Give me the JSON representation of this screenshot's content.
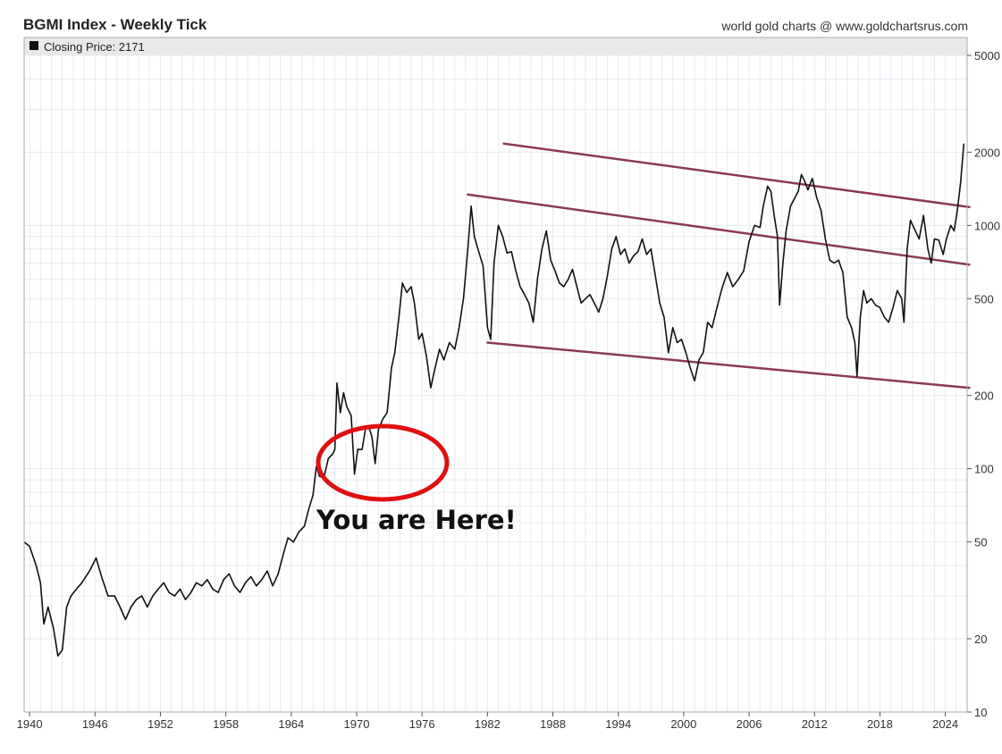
{
  "header": {
    "title": "BGMI Index - Weekly Tick",
    "source": "world gold charts @ www.goldchartsrus.com"
  },
  "legend": {
    "label": "Closing Price: 2171",
    "swatch_color": "#111111"
  },
  "annotation": {
    "text": "You are Here!",
    "circle_color": "#e01010"
  },
  "colors": {
    "price_line": "#111111",
    "trend_lines": "#8c3a52",
    "grid": "#e6ebf2",
    "legend_bar": "#e9e9e9"
  },
  "chart_data": {
    "type": "line",
    "title": "BGMI Index - Weekly Tick",
    "y_scale": "log",
    "ylim": [
      10,
      5000
    ],
    "xlim": [
      1939.5,
      2026.0
    ],
    "x_ticks": [
      1940,
      1946,
      1952,
      1958,
      1964,
      1970,
      1976,
      1982,
      1988,
      1994,
      2000,
      2006,
      2012,
      2018,
      2024
    ],
    "y_ticks": [
      10,
      20,
      50,
      100,
      200,
      500,
      1000,
      2000,
      5000
    ],
    "grid": true,
    "legend_position": "top-left",
    "series": [
      {
        "name": "Closing Price: 2171",
        "points": [
          [
            1939.5,
            50
          ],
          [
            1940.0,
            48
          ],
          [
            1940.6,
            40
          ],
          [
            1941.0,
            34
          ],
          [
            1941.3,
            23
          ],
          [
            1941.7,
            27
          ],
          [
            1942.2,
            22
          ],
          [
            1942.6,
            17
          ],
          [
            1943.0,
            18
          ],
          [
            1943.4,
            27
          ],
          [
            1943.8,
            30
          ],
          [
            1944.3,
            32
          ],
          [
            1944.8,
            34
          ],
          [
            1945.5,
            38
          ],
          [
            1946.1,
            43
          ],
          [
            1946.6,
            36
          ],
          [
            1947.2,
            30
          ],
          [
            1947.8,
            30
          ],
          [
            1948.3,
            27
          ],
          [
            1948.8,
            24
          ],
          [
            1949.3,
            27
          ],
          [
            1949.8,
            29
          ],
          [
            1950.3,
            30
          ],
          [
            1950.8,
            27
          ],
          [
            1951.3,
            30
          ],
          [
            1951.8,
            32
          ],
          [
            1952.3,
            34
          ],
          [
            1952.8,
            31
          ],
          [
            1953.3,
            30
          ],
          [
            1953.8,
            32
          ],
          [
            1954.3,
            29
          ],
          [
            1954.8,
            31
          ],
          [
            1955.3,
            34
          ],
          [
            1955.8,
            33
          ],
          [
            1956.3,
            35
          ],
          [
            1956.8,
            32
          ],
          [
            1957.3,
            31
          ],
          [
            1957.8,
            35
          ],
          [
            1958.3,
            37
          ],
          [
            1958.8,
            33
          ],
          [
            1959.3,
            31
          ],
          [
            1959.8,
            34
          ],
          [
            1960.3,
            36
          ],
          [
            1960.8,
            33
          ],
          [
            1961.3,
            35
          ],
          [
            1961.8,
            38
          ],
          [
            1962.3,
            33
          ],
          [
            1962.8,
            37
          ],
          [
            1963.3,
            45
          ],
          [
            1963.7,
            52
          ],
          [
            1964.2,
            50
          ],
          [
            1964.7,
            55
          ],
          [
            1965.2,
            58
          ],
          [
            1965.6,
            68
          ],
          [
            1966.0,
            78
          ],
          [
            1966.3,
            102
          ],
          [
            1966.6,
            93
          ],
          [
            1967.0,
            92
          ],
          [
            1967.4,
            110
          ],
          [
            1967.8,
            115
          ],
          [
            1968.0,
            120
          ],
          [
            1968.2,
            225
          ],
          [
            1968.5,
            170
          ],
          [
            1968.8,
            205
          ],
          [
            1969.1,
            180
          ],
          [
            1969.5,
            165
          ],
          [
            1969.8,
            95
          ],
          [
            1970.1,
            120
          ],
          [
            1970.5,
            120
          ],
          [
            1970.8,
            145
          ],
          [
            1971.1,
            150
          ],
          [
            1971.4,
            135
          ],
          [
            1971.7,
            105
          ],
          [
            1972.0,
            145
          ],
          [
            1972.4,
            160
          ],
          [
            1972.8,
            170
          ],
          [
            1973.2,
            260
          ],
          [
            1973.5,
            300
          ],
          [
            1973.9,
            430
          ],
          [
            1974.2,
            580
          ],
          [
            1974.6,
            530
          ],
          [
            1975.0,
            560
          ],
          [
            1975.3,
            480
          ],
          [
            1975.7,
            340
          ],
          [
            1976.0,
            360
          ],
          [
            1976.4,
            290
          ],
          [
            1976.8,
            215
          ],
          [
            1977.2,
            260
          ],
          [
            1977.6,
            310
          ],
          [
            1978.0,
            280
          ],
          [
            1978.5,
            330
          ],
          [
            1979.0,
            310
          ],
          [
            1979.4,
            380
          ],
          [
            1979.8,
            500
          ],
          [
            1980.2,
            800
          ],
          [
            1980.5,
            1200
          ],
          [
            1980.8,
            900
          ],
          [
            1981.2,
            780
          ],
          [
            1981.6,
            680
          ],
          [
            1982.0,
            380
          ],
          [
            1982.3,
            340
          ],
          [
            1982.6,
            700
          ],
          [
            1983.0,
            1000
          ],
          [
            1983.4,
            900
          ],
          [
            1983.8,
            770
          ],
          [
            1984.2,
            780
          ],
          [
            1984.6,
            650
          ],
          [
            1985.0,
            560
          ],
          [
            1985.4,
            520
          ],
          [
            1985.8,
            480
          ],
          [
            1986.2,
            400
          ],
          [
            1986.6,
            610
          ],
          [
            1987.0,
            800
          ],
          [
            1987.4,
            950
          ],
          [
            1987.8,
            720
          ],
          [
            1988.2,
            650
          ],
          [
            1988.6,
            580
          ],
          [
            1989.0,
            560
          ],
          [
            1989.4,
            600
          ],
          [
            1989.8,
            660
          ],
          [
            1990.2,
            560
          ],
          [
            1990.6,
            480
          ],
          [
            1991.0,
            500
          ],
          [
            1991.4,
            520
          ],
          [
            1991.8,
            480
          ],
          [
            1992.2,
            440
          ],
          [
            1992.6,
            500
          ],
          [
            1993.0,
            620
          ],
          [
            1993.4,
            800
          ],
          [
            1993.8,
            900
          ],
          [
            1994.2,
            760
          ],
          [
            1994.6,
            800
          ],
          [
            1995.0,
            700
          ],
          [
            1995.4,
            750
          ],
          [
            1995.8,
            780
          ],
          [
            1996.2,
            880
          ],
          [
            1996.6,
            760
          ],
          [
            1997.0,
            800
          ],
          [
            1997.4,
            620
          ],
          [
            1997.8,
            480
          ],
          [
            1998.2,
            420
          ],
          [
            1998.6,
            300
          ],
          [
            1999.0,
            380
          ],
          [
            1999.4,
            330
          ],
          [
            1999.8,
            340
          ],
          [
            2000.2,
            300
          ],
          [
            2000.6,
            260
          ],
          [
            2001.0,
            230
          ],
          [
            2001.4,
            280
          ],
          [
            2001.8,
            300
          ],
          [
            2002.2,
            400
          ],
          [
            2002.6,
            380
          ],
          [
            2003.0,
            450
          ],
          [
            2003.5,
            550
          ],
          [
            2004.0,
            640
          ],
          [
            2004.5,
            560
          ],
          [
            2005.0,
            600
          ],
          [
            2005.5,
            650
          ],
          [
            2006.0,
            860
          ],
          [
            2006.5,
            1000
          ],
          [
            2007.0,
            980
          ],
          [
            2007.3,
            1200
          ],
          [
            2007.7,
            1450
          ],
          [
            2008.0,
            1380
          ],
          [
            2008.3,
            1100
          ],
          [
            2008.6,
            900
          ],
          [
            2008.8,
            470
          ],
          [
            2009.1,
            700
          ],
          [
            2009.4,
            950
          ],
          [
            2009.8,
            1200
          ],
          [
            2010.2,
            1300
          ],
          [
            2010.5,
            1380
          ],
          [
            2010.8,
            1620
          ],
          [
            2011.1,
            1520
          ],
          [
            2011.4,
            1400
          ],
          [
            2011.8,
            1560
          ],
          [
            2012.2,
            1300
          ],
          [
            2012.6,
            1150
          ],
          [
            2013.0,
            880
          ],
          [
            2013.4,
            720
          ],
          [
            2013.8,
            700
          ],
          [
            2014.2,
            720
          ],
          [
            2014.6,
            640
          ],
          [
            2015.0,
            420
          ],
          [
            2015.4,
            380
          ],
          [
            2015.7,
            330
          ],
          [
            2015.9,
            240
          ],
          [
            2016.2,
            420
          ],
          [
            2016.5,
            540
          ],
          [
            2016.8,
            480
          ],
          [
            2017.2,
            500
          ],
          [
            2017.6,
            470
          ],
          [
            2018.0,
            460
          ],
          [
            2018.4,
            420
          ],
          [
            2018.8,
            400
          ],
          [
            2019.2,
            460
          ],
          [
            2019.6,
            540
          ],
          [
            2020.0,
            500
          ],
          [
            2020.2,
            400
          ],
          [
            2020.5,
            800
          ],
          [
            2020.8,
            1050
          ],
          [
            2021.2,
            960
          ],
          [
            2021.6,
            880
          ],
          [
            2022.0,
            1100
          ],
          [
            2022.4,
            800
          ],
          [
            2022.7,
            700
          ],
          [
            2023.0,
            880
          ],
          [
            2023.4,
            870
          ],
          [
            2023.8,
            760
          ],
          [
            2024.1,
            880
          ],
          [
            2024.5,
            1000
          ],
          [
            2024.8,
            950
          ],
          [
            2025.1,
            1150
          ],
          [
            2025.4,
            1500
          ],
          [
            2025.7,
            2171
          ]
        ]
      }
    ],
    "trend_lines": [
      {
        "from": [
          1983.5,
          2170
        ],
        "to": [
          2026.2,
          1190
        ]
      },
      {
        "from": [
          1980.2,
          1340
        ],
        "to": [
          2026.2,
          690
        ]
      },
      {
        "from": [
          1982.0,
          330
        ],
        "to": [
          2026.2,
          215
        ]
      }
    ]
  }
}
